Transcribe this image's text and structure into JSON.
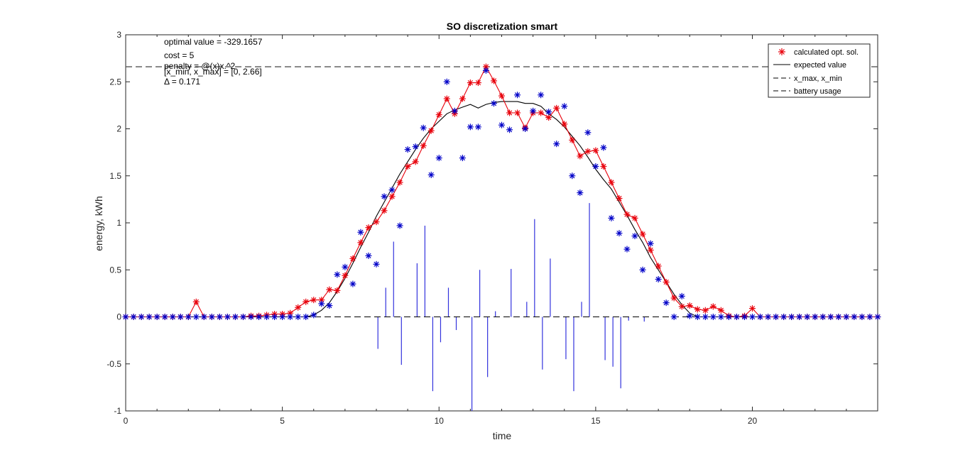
{
  "chart_data": {
    "type": "line",
    "title": "SO discretization smart",
    "xlabel": "time",
    "ylabel": "energy, kWh",
    "xlim": [
      0,
      24
    ],
    "ylim": [
      -1,
      3
    ],
    "x_ticks": [
      "0",
      "5",
      "10",
      "15",
      "20"
    ],
    "y_ticks": [
      "-1",
      "-0.5",
      "0",
      "0.5",
      "1",
      "1.5",
      "2",
      "2.5",
      "3"
    ],
    "annotations": {
      "optimal_value": "optimal value = -329.1657",
      "cost": "cost = 5",
      "penalty": "penalty = @(x)x.^2",
      "bounds": "[x_min, x_max] = [0, 2.66]",
      "delta": "Δ = 0.171"
    },
    "legend": {
      "placement": "top-right",
      "entries": [
        "calculated opt. sol.",
        "expected value",
        "x_max, x_min",
        "battery usage"
      ]
    },
    "x_max": 2.66,
    "x_min": 0,
    "colors": {
      "calculated": "#e8000b",
      "scenarios": "#0000c8",
      "expected": "#000000",
      "battery": "#3333dd",
      "bounds": "#555555"
    },
    "series": [
      {
        "name": "calculated opt. sol.",
        "x": [
          0,
          0.25,
          0.5,
          0.75,
          1,
          1.25,
          1.5,
          1.75,
          2,
          2.25,
          2.5,
          2.75,
          3,
          3.25,
          3.5,
          3.75,
          4,
          4.25,
          4.5,
          4.75,
          5,
          5.25,
          5.5,
          5.75,
          6,
          6.25,
          6.5,
          6.75,
          7,
          7.25,
          7.5,
          7.75,
          8,
          8.25,
          8.5,
          8.75,
          9,
          9.25,
          9.5,
          9.75,
          10,
          10.25,
          10.5,
          10.75,
          11,
          11.25,
          11.5,
          11.75,
          12,
          12.25,
          12.5,
          12.75,
          13,
          13.25,
          13.5,
          13.75,
          14,
          14.25,
          14.5,
          14.75,
          15,
          15.25,
          15.5,
          15.75,
          16,
          16.25,
          16.5,
          16.75,
          17,
          17.25,
          17.5,
          17.75,
          18,
          18.25,
          18.5,
          18.75,
          19,
          19.25,
          19.5,
          19.75,
          20,
          20.25,
          20.5,
          20.75,
          21,
          21.25,
          21.5,
          21.75,
          22,
          22.25,
          22.5,
          22.75,
          23,
          23.25,
          23.5,
          23.75,
          24
        ],
        "values": [
          0,
          0,
          0,
          0,
          0,
          0,
          0,
          0,
          0,
          0.16,
          0,
          0,
          0,
          0,
          0,
          0,
          0.01,
          0.01,
          0.02,
          0.03,
          0.03,
          0.04,
          0.1,
          0.16,
          0.18,
          0.18,
          0.29,
          0.28,
          0.44,
          0.62,
          0.79,
          0.95,
          1.01,
          1.13,
          1.28,
          1.43,
          1.6,
          1.65,
          1.82,
          1.98,
          2.15,
          2.32,
          2.16,
          2.32,
          2.49,
          2.49,
          2.66,
          2.51,
          2.35,
          2.17,
          2.17,
          2.01,
          2.17,
          2.17,
          2.12,
          2.22,
          2.05,
          1.88,
          1.71,
          1.76,
          1.77,
          1.6,
          1.43,
          1.26,
          1.09,
          1.05,
          0.88,
          0.71,
          0.54,
          0.37,
          0.2,
          0.11,
          0.12,
          0.08,
          0.07,
          0.11,
          0.07,
          0.01,
          0,
          0.01,
          0.09,
          0,
          0,
          0,
          0,
          0,
          0,
          0,
          0,
          0,
          0,
          0,
          0,
          0,
          0,
          0,
          0
        ]
      },
      {
        "name": "",
        "x": [
          0,
          0.25,
          0.5,
          0.75,
          1,
          1.25,
          1.5,
          1.75,
          2,
          2.25,
          2.5,
          2.75,
          3,
          3.25,
          3.5,
          3.75,
          4,
          4.25,
          4.5,
          4.75,
          5,
          5.25,
          5.5,
          5.75,
          6,
          6.25,
          6.5,
          6.75,
          7,
          7.25,
          7.5,
          7.75,
          8,
          8.25,
          8.5,
          8.75,
          9,
          9.25,
          9.5,
          9.75,
          10,
          10.25,
          10.5,
          10.75,
          11,
          11.25,
          11.5,
          11.75,
          12,
          12.25,
          12.5,
          12.75,
          13,
          13.25,
          13.5,
          13.75,
          14,
          14.25,
          14.5,
          14.75,
          15,
          15.25,
          15.5,
          15.75,
          16,
          16.25,
          16.5,
          16.75,
          17,
          17.25,
          17.5,
          17.75,
          18,
          18.25,
          18.5,
          18.75,
          19,
          19.25,
          19.5,
          19.75,
          20,
          20.25,
          20.5,
          20.75,
          21,
          21.25,
          21.5,
          21.75,
          22,
          22.25,
          22.5,
          22.75,
          23,
          23.25,
          23.5,
          23.75,
          24
        ],
        "values": [
          0,
          0,
          0,
          0,
          0,
          0,
          0,
          0,
          0,
          0,
          0,
          0,
          0,
          0,
          0,
          0,
          0,
          0,
          0,
          0,
          0,
          0,
          0,
          0,
          0.02,
          0.14,
          0.12,
          0.45,
          0.53,
          0.35,
          0.9,
          0.65,
          0.56,
          1.28,
          1.35,
          0.97,
          1.78,
          1.81,
          2.01,
          1.51,
          1.69,
          2.5,
          2.19,
          1.69,
          2.02,
          2.02,
          2.62,
          2.27,
          2.04,
          1.99,
          2.36,
          2.0,
          2.19,
          2.36,
          2.18,
          1.84,
          2.24,
          1.5,
          1.32,
          1.96,
          1.6,
          1.8,
          1.05,
          0.89,
          0.72,
          0.86,
          0.5,
          0.78,
          0.4,
          0.15,
          0,
          0.22,
          0.01,
          0,
          0,
          0,
          0,
          0,
          0,
          0,
          0,
          0,
          0,
          0,
          0,
          0,
          0,
          0,
          0,
          0,
          0,
          0,
          0,
          0,
          0,
          0,
          0
        ]
      },
      {
        "name": "expected value",
        "x": [
          0,
          5,
          5.75,
          6,
          6.25,
          6.5,
          6.75,
          7,
          7.25,
          7.5,
          7.75,
          8,
          8.25,
          8.5,
          8.75,
          9,
          9.25,
          9.5,
          9.75,
          10,
          10.25,
          10.5,
          10.75,
          11,
          11.25,
          11.5,
          11.75,
          12,
          12.25,
          12.5,
          12.75,
          13,
          13.25,
          13.5,
          13.75,
          14,
          14.25,
          14.5,
          14.75,
          15,
          15.25,
          15.5,
          15.75,
          16,
          16.25,
          16.5,
          16.75,
          17,
          17.25,
          17.5,
          17.75,
          18,
          18.25,
          18.5,
          24
        ],
        "values": [
          0,
          0,
          0,
          0.02,
          0.07,
          0.15,
          0.27,
          0.41,
          0.57,
          0.74,
          0.9,
          1.07,
          1.22,
          1.37,
          1.52,
          1.65,
          1.78,
          1.9,
          2.0,
          2.08,
          2.16,
          2.2,
          2.23,
          2.26,
          2.22,
          2.26,
          2.28,
          2.29,
          2.29,
          2.29,
          2.27,
          2.27,
          2.24,
          2.16,
          2.1,
          2.02,
          1.92,
          1.82,
          1.7,
          1.57,
          1.46,
          1.36,
          1.22,
          1.08,
          0.93,
          0.79,
          0.63,
          0.5,
          0.37,
          0.24,
          0.13,
          0.04,
          0,
          0,
          0
        ]
      }
    ],
    "battery_usage": {
      "x": [
        8.05,
        8.3,
        8.55,
        8.8,
        9.3,
        9.55,
        9.8,
        10.05,
        10.3,
        10.55,
        11.05,
        11.3,
        11.55,
        11.8,
        12.3,
        12.8,
        13.05,
        13.3,
        13.55,
        14.05,
        14.3,
        14.55,
        14.8,
        15.3,
        15.55,
        15.8,
        16.05,
        16.55
      ],
      "values": [
        -0.34,
        0.31,
        0.8,
        -0.51,
        0.57,
        0.97,
        -0.79,
        -0.27,
        0.31,
        -0.14,
        -1,
        0.5,
        -0.64,
        0.06,
        0.51,
        0.16,
        1.04,
        -0.56,
        0.62,
        -0.45,
        -0.79,
        0.16,
        1.21,
        -0.46,
        -0.53,
        -0.76,
        -0.04,
        -0.05
      ]
    }
  }
}
